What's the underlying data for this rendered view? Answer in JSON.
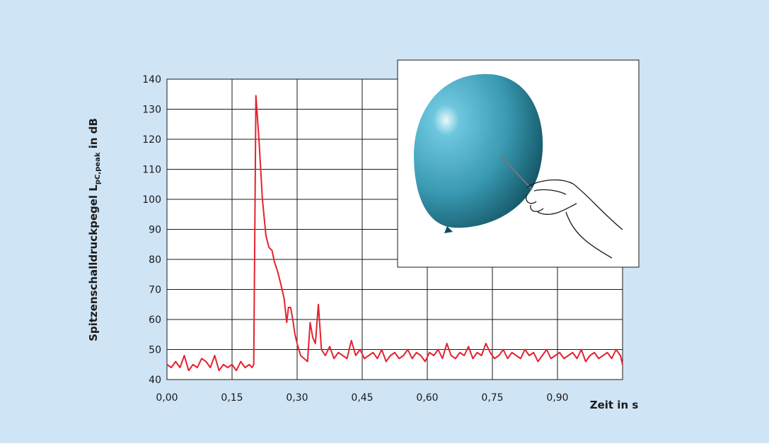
{
  "chart_data": {
    "type": "line",
    "y_label": {
      "main": "Spitzenschalldruckpegel L",
      "sub": "pC,peak",
      "unit": " in dB"
    },
    "x_label": "Zeit in s",
    "x": [
      0,
      0.01,
      0.02,
      0.03,
      0.04,
      0.05,
      0.06,
      0.07,
      0.08,
      0.09,
      0.1,
      0.11,
      0.12,
      0.13,
      0.14,
      0.15,
      0.16,
      0.17,
      0.18,
      0.19,
      0.196,
      0.2,
      0.205,
      0.212,
      0.22,
      0.228,
      0.235,
      0.242,
      0.248,
      0.255,
      0.262,
      0.27,
      0.276,
      0.28,
      0.285,
      0.29,
      0.295,
      0.3,
      0.308,
      0.316,
      0.324,
      0.33,
      0.336,
      0.342,
      0.349,
      0.356,
      0.365,
      0.375,
      0.385,
      0.395,
      0.405,
      0.415,
      0.425,
      0.435,
      0.445,
      0.455,
      0.465,
      0.475,
      0.485,
      0.495,
      0.505,
      0.515,
      0.525,
      0.535,
      0.545,
      0.555,
      0.565,
      0.575,
      0.585,
      0.595,
      0.605,
      0.615,
      0.625,
      0.635,
      0.645,
      0.655,
      0.665,
      0.675,
      0.685,
      0.695,
      0.705,
      0.715,
      0.725,
      0.735,
      0.745,
      0.755,
      0.765,
      0.775,
      0.785,
      0.795,
      0.805,
      0.815,
      0.825,
      0.835,
      0.845,
      0.855,
      0.865,
      0.875,
      0.885,
      0.895,
      0.905,
      0.915,
      0.925,
      0.935,
      0.945,
      0.955,
      0.965,
      0.975,
      0.985,
      0.995,
      1.005,
      1.015,
      1.025,
      1.035,
      1.045,
      1.05
    ],
    "series": [
      {
        "color": "#e3232f",
        "values": [
          45,
          44,
          46,
          44,
          48,
          43,
          45,
          44,
          47,
          46,
          44,
          48,
          43,
          45,
          44,
          45,
          43,
          46,
          44,
          45,
          44,
          45,
          134.5,
          120,
          100,
          88,
          84,
          83,
          79,
          76,
          72,
          67,
          59,
          64,
          64,
          60,
          55,
          52,
          48,
          47,
          46,
          59,
          54,
          52,
          65,
          50,
          48,
          51,
          47,
          49,
          48,
          47,
          53,
          48,
          50,
          47,
          48,
          49,
          47,
          50,
          46,
          48,
          49,
          47,
          48,
          50,
          47,
          49,
          48,
          46,
          49,
          48,
          50,
          47,
          52,
          48,
          47,
          49,
          48,
          51,
          47,
          49,
          48,
          52,
          49,
          47,
          48,
          50,
          47,
          49,
          48,
          47,
          50,
          48,
          49,
          46,
          48,
          50,
          47,
          48,
          49,
          47,
          48,
          49,
          47,
          50,
          46,
          48,
          49,
          47,
          48,
          49,
          47,
          50,
          48,
          45
        ]
      }
    ],
    "xlim": [
      0,
      1.05
    ],
    "ylim": [
      40,
      140
    ],
    "xticks": [
      {
        "value": 0,
        "label": "0,00"
      },
      {
        "value": 0.15,
        "label": "0,15"
      },
      {
        "value": 0.3,
        "label": "0,30"
      },
      {
        "value": 0.45,
        "label": "0,45"
      },
      {
        "value": 0.6,
        "label": "0,60"
      },
      {
        "value": 0.75,
        "label": "0,75"
      },
      {
        "value": 0.9,
        "label": "0,90"
      }
    ],
    "yticks": [
      40,
      50,
      60,
      70,
      80,
      90,
      100,
      110,
      120,
      130,
      140
    ],
    "grid": true
  }
}
